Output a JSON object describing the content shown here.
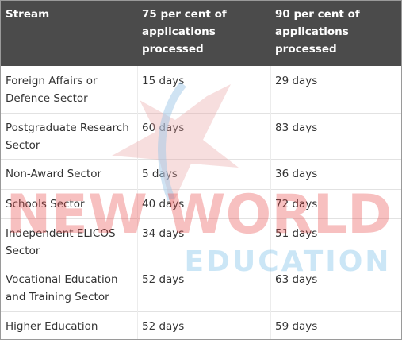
{
  "table": {
    "header": [
      "Stream",
      "75 per cent of applications processed",
      "90 per cent of applications processed"
    ],
    "rows": [
      [
        "Foreign Affairs or Defence Sector",
        "15 days",
        "29 days"
      ],
      [
        "Postgraduate Research Sector",
        "60 days",
        "83 days"
      ],
      [
        "Non-Award Sector",
        "5 days",
        "36 days"
      ],
      [
        "Schools Sector",
        "40 days",
        "72 days"
      ],
      [
        "Independent ELICOS Sector",
        "34 days",
        "51 days"
      ],
      [
        "Vocational Education and Training Sector",
        "52 days",
        "63 days"
      ],
      [
        "Higher Education Sector",
        "52 days",
        "59 days"
      ]
    ]
  },
  "watermark": {
    "line1": "NEW WORLD",
    "line2": "EDUCATION"
  }
}
